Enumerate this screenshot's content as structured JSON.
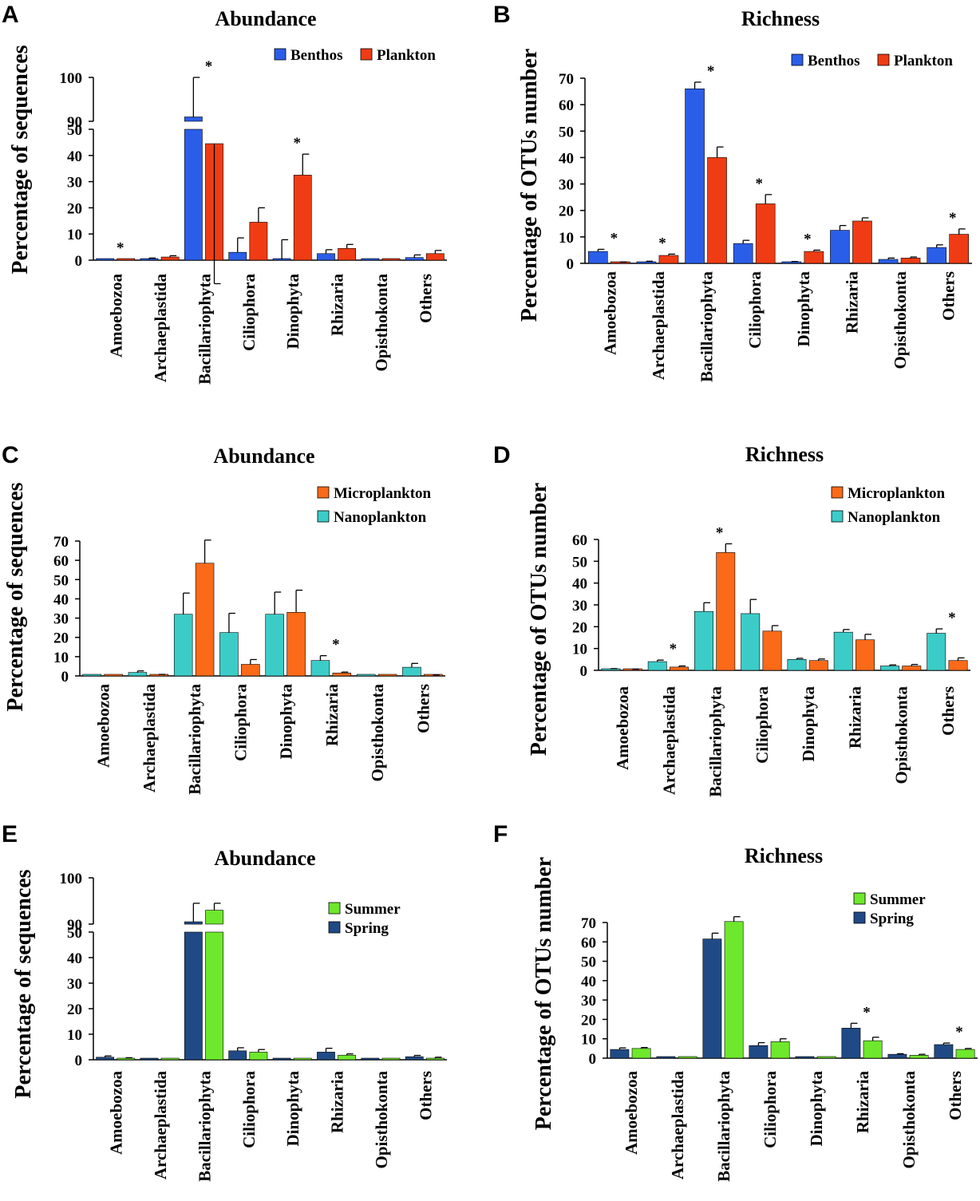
{
  "categories": [
    "Amoebozoa",
    "Archaeplastida",
    "Bacillariophyta",
    "Ciliophora",
    "Dinophyta",
    "Rhizaria",
    "Opisthokonta",
    "Others"
  ],
  "colors": {
    "Benthos": "#2b5ee8",
    "Plankton": "#f03c14",
    "Microplankton": "#fb6a18",
    "Nanoplankton": "#3cccc8",
    "Summer": "#6ee82c",
    "Spring": "#1f4a85"
  },
  "chart_data": [
    {
      "panel": "A",
      "type": "bar",
      "title": "Abundance",
      "ylabel": "Percentage of sequences",
      "legend": [
        "Benthos",
        "Plankton"
      ],
      "broken_axis": true,
      "yticks_lower": [
        0,
        10,
        20,
        30,
        40,
        50
      ],
      "yticks_upper": [
        90,
        100
      ],
      "series": [
        {
          "name": "Benthos",
          "values": [
            0.5,
            0.3,
            91,
            3,
            0.3,
            2.5,
            0.3,
            1
          ],
          "errors": [
            0,
            0.5,
            9,
            5.5,
            7.5,
            1.5,
            0,
            1
          ]
        },
        {
          "name": "Plankton",
          "values": [
            0.2,
            1.2,
            44.5,
            14.5,
            32.5,
            4.5,
            0.2,
            2.5
          ],
          "errors": [
            0,
            0.5,
            8.5,
            5.5,
            8,
            1.5,
            0,
            1.2
          ]
        }
      ],
      "significant": [
        0,
        2,
        4
      ]
    },
    {
      "panel": "B",
      "type": "bar",
      "title": "Richness",
      "ylabel": "Percentage of OTUs number",
      "legend": [
        "Benthos",
        "Plankton"
      ],
      "ylim": [
        0,
        70
      ],
      "yticks": [
        0,
        10,
        20,
        30,
        40,
        50,
        60,
        70
      ],
      "series": [
        {
          "name": "Benthos",
          "values": [
            4.5,
            0.5,
            66,
            7.5,
            0.5,
            12.5,
            1.5,
            6
          ],
          "errors": [
            0.8,
            0.3,
            2.5,
            1.2,
            0.2,
            1.8,
            0.5,
            1
          ]
        },
        {
          "name": "Plankton",
          "values": [
            0.3,
            3,
            40,
            22.5,
            4.5,
            16,
            2,
            11
          ],
          "errors": [
            0.2,
            0.5,
            4,
            3.5,
            0.5,
            1.2,
            0.4,
            2
          ]
        }
      ],
      "significant": [
        0,
        1,
        2,
        3,
        4,
        7
      ]
    },
    {
      "panel": "C",
      "type": "bar",
      "title": "Abundance",
      "ylabel": "Percentage of sequences",
      "legend": [
        "Microplankton",
        "Nanoplankton"
      ],
      "ylim": [
        0,
        70
      ],
      "yticks": [
        0,
        10,
        20,
        30,
        40,
        50,
        60,
        70
      ],
      "series": [
        {
          "name": "Nanoplankton",
          "values": [
            0.2,
            1.8,
            32,
            22.5,
            32,
            8,
            0.2,
            4.5
          ],
          "errors": [
            0,
            0.8,
            11,
            10,
            11.5,
            2.5,
            0,
            2
          ]
        },
        {
          "name": "Microplankton",
          "values": [
            0.2,
            0.5,
            58.5,
            6,
            33,
            1.5,
            0.2,
            0.3
          ],
          "errors": [
            0,
            0.3,
            12,
            2.5,
            11.5,
            0.5,
            0,
            0.2
          ]
        }
      ],
      "significant": [
        5
      ]
    },
    {
      "panel": "D",
      "type": "bar",
      "title": "Richness",
      "ylabel": "Percentage of OTUs number",
      "legend": [
        "Microplankton",
        "Nanoplankton"
      ],
      "ylim": [
        0,
        60
      ],
      "yticks": [
        0,
        10,
        20,
        30,
        40,
        50,
        60
      ],
      "series": [
        {
          "name": "Nanoplankton",
          "values": [
            0.5,
            4,
            27,
            26,
            5,
            17.5,
            2,
            17
          ],
          "errors": [
            0.3,
            0.7,
            4,
            6.5,
            0.5,
            1.2,
            0.5,
            2
          ]
        },
        {
          "name": "Microplankton",
          "values": [
            0.3,
            1.5,
            54,
            18,
            4.5,
            14,
            2,
            4.5
          ],
          "errors": [
            0.2,
            0.5,
            4,
            2.5,
            0.7,
            2.5,
            0.7,
            1.2
          ]
        }
      ],
      "significant": [
        1,
        2,
        7
      ]
    },
    {
      "panel": "E",
      "type": "bar",
      "title": "Abundance",
      "ylabel": "Percentage of sequences",
      "legend": [
        "Summer",
        "Spring"
      ],
      "broken_axis": true,
      "yticks_lower": [
        0,
        10,
        20,
        30,
        40,
        50
      ],
      "yticks_upper": [
        90,
        100
      ],
      "series": [
        {
          "name": "Spring",
          "values": [
            1,
            0.2,
            90.5,
            3.5,
            0.2,
            3,
            0.2,
            1.2
          ],
          "errors": [
            0.5,
            0,
            4,
            1.2,
            0,
            1.5,
            0,
            0.5
          ]
        },
        {
          "name": "Summer",
          "values": [
            0.5,
            0.2,
            93,
            3,
            0.2,
            1.8,
            0.2,
            0.5
          ],
          "errors": [
            0.3,
            0,
            1.5,
            1,
            0,
            0.5,
            0,
            0.5
          ]
        }
      ],
      "significant": []
    },
    {
      "panel": "F",
      "type": "bar",
      "title": "Richness",
      "ylabel": "Percentage of OTUs number",
      "legend": [
        "Summer",
        "Spring"
      ],
      "ylim": [
        0,
        70
      ],
      "yticks": [
        0,
        10,
        20,
        30,
        40,
        50,
        60,
        70
      ],
      "series": [
        {
          "name": "Spring",
          "values": [
            4.5,
            0.3,
            61.5,
            6.5,
            0.3,
            15.5,
            2,
            7
          ],
          "errors": [
            0.8,
            0,
            3,
            1.5,
            0,
            2.5,
            0.3,
            0.8
          ]
        },
        {
          "name": "Summer",
          "values": [
            5,
            0.3,
            70.5,
            8.5,
            0.3,
            9,
            1.5,
            4.5
          ],
          "errors": [
            0.5,
            0,
            2.5,
            1.5,
            0,
            1.8,
            0.5,
            0.5
          ]
        }
      ],
      "significant": [
        5,
        7
      ]
    }
  ]
}
